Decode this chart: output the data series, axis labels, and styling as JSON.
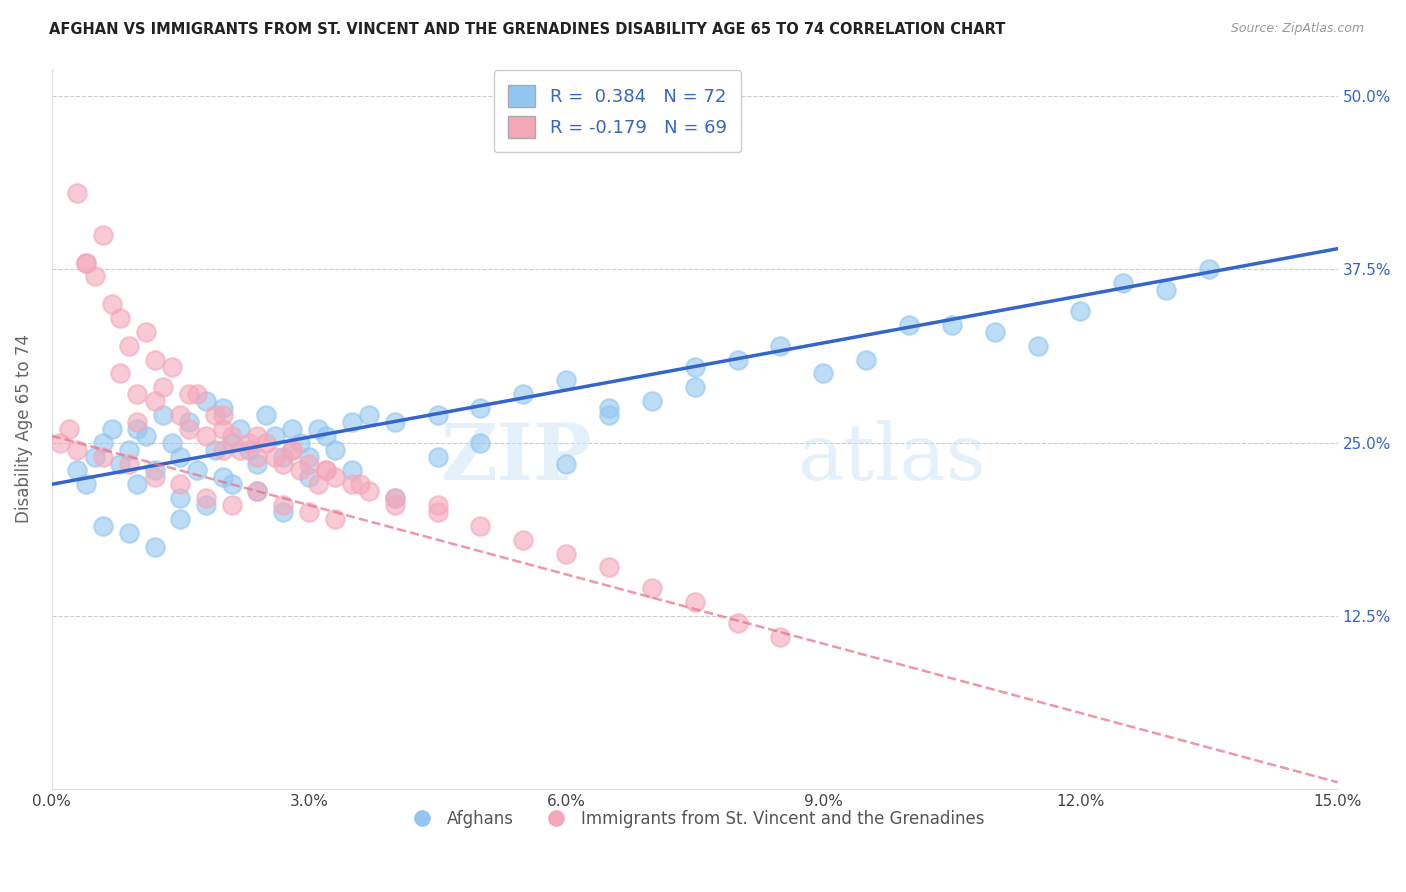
{
  "title": "AFGHAN VS IMMIGRANTS FROM ST. VINCENT AND THE GRENADINES DISABILITY AGE 65 TO 74 CORRELATION CHART",
  "source": "Source: ZipAtlas.com",
  "ylabel": "Disability Age 65 to 74",
  "xmin": 0.0,
  "xmax": 15.0,
  "ymin": 0.0,
  "ymax": 52.0,
  "yticks": [
    12.5,
    25.0,
    37.5,
    50.0
  ],
  "ytick_labels": [
    "12.5%",
    "25.0%",
    "37.5%",
    "50.0%"
  ],
  "xticks": [
    0.0,
    3.0,
    6.0,
    9.0,
    12.0,
    15.0
  ],
  "xtick_labels": [
    "0.0%",
    "3.0%",
    "6.0%",
    "9.0%",
    "12.0%",
    "15.0%"
  ],
  "blue_R": 0.384,
  "blue_N": 72,
  "pink_R": -0.179,
  "pink_N": 69,
  "blue_color": "#92C5F0",
  "pink_color": "#F4A7B9",
  "trend_blue_color": "#3465C8",
  "trend_pink_color": "#E8748A",
  "legend_label_blue": "Afghans",
  "legend_label_pink": "Immigrants from St. Vincent and the Grenadines",
  "watermark_zip": "ZIP",
  "watermark_atlas": "atlas",
  "blue_trend_x0": 0.0,
  "blue_trend_y0": 22.0,
  "blue_trend_x1": 15.0,
  "blue_trend_y1": 39.0,
  "pink_trend_x0": 0.0,
  "pink_trend_y0": 25.5,
  "pink_trend_x1": 15.0,
  "pink_trend_y1": 0.5,
  "blue_scatter_x": [
    0.3,
    0.4,
    0.5,
    0.6,
    0.7,
    0.8,
    0.9,
    1.0,
    1.0,
    1.1,
    1.2,
    1.3,
    1.4,
    1.5,
    1.6,
    1.7,
    1.8,
    1.9,
    2.0,
    2.0,
    2.1,
    2.2,
    2.3,
    2.4,
    2.5,
    2.6,
    2.7,
    2.8,
    2.9,
    3.0,
    3.1,
    3.2,
    3.3,
    3.5,
    3.7,
    4.0,
    4.5,
    5.0,
    5.5,
    6.0,
    6.5,
    7.0,
    7.5,
    8.0,
    9.0,
    10.0,
    11.0,
    12.5,
    1.5,
    1.8,
    2.1,
    2.4,
    2.7,
    3.0,
    3.5,
    4.0,
    4.5,
    5.0,
    6.0,
    6.5,
    7.5,
    8.5,
    9.5,
    10.5,
    11.5,
    12.0,
    13.0,
    13.5,
    0.6,
    0.9,
    1.2,
    1.5
  ],
  "blue_scatter_y": [
    23.0,
    22.0,
    24.0,
    25.0,
    26.0,
    23.5,
    24.5,
    22.0,
    26.0,
    25.5,
    23.0,
    27.0,
    25.0,
    24.0,
    26.5,
    23.0,
    28.0,
    24.5,
    22.5,
    27.5,
    25.0,
    26.0,
    24.5,
    23.5,
    27.0,
    25.5,
    24.0,
    26.0,
    25.0,
    24.0,
    26.0,
    25.5,
    24.5,
    26.5,
    27.0,
    26.5,
    27.0,
    27.5,
    28.5,
    29.5,
    27.0,
    28.0,
    29.0,
    31.0,
    30.0,
    33.5,
    33.0,
    36.5,
    21.0,
    20.5,
    22.0,
    21.5,
    20.0,
    22.5,
    23.0,
    21.0,
    24.0,
    25.0,
    23.5,
    27.5,
    30.5,
    32.0,
    31.0,
    33.5,
    32.0,
    34.5,
    36.0,
    37.5,
    19.0,
    18.5,
    17.5,
    19.5
  ],
  "pink_scatter_x": [
    0.1,
    0.2,
    0.3,
    0.4,
    0.5,
    0.6,
    0.7,
    0.8,
    0.9,
    1.0,
    1.0,
    1.1,
    1.2,
    1.3,
    1.4,
    1.5,
    1.6,
    1.7,
    1.8,
    1.9,
    2.0,
    2.0,
    2.1,
    2.2,
    2.3,
    2.4,
    2.5,
    2.6,
    2.7,
    2.8,
    2.9,
    3.0,
    3.1,
    3.2,
    3.3,
    3.5,
    3.7,
    4.0,
    4.5,
    0.3,
    0.6,
    0.9,
    1.2,
    1.5,
    1.8,
    2.1,
    2.4,
    2.7,
    3.0,
    3.3,
    0.4,
    0.8,
    1.2,
    1.6,
    2.0,
    2.4,
    2.8,
    3.2,
    3.6,
    4.0,
    4.5,
    5.0,
    5.5,
    6.0,
    6.5,
    7.0,
    7.5,
    8.0,
    8.5
  ],
  "pink_scatter_y": [
    25.0,
    26.0,
    43.0,
    38.0,
    37.0,
    40.0,
    35.0,
    30.0,
    32.0,
    28.5,
    26.5,
    33.0,
    28.0,
    29.0,
    30.5,
    27.0,
    26.0,
    28.5,
    25.5,
    27.0,
    26.0,
    24.5,
    25.5,
    24.5,
    25.0,
    24.0,
    25.0,
    24.0,
    23.5,
    24.5,
    23.0,
    23.5,
    22.0,
    23.0,
    22.5,
    22.0,
    21.5,
    21.0,
    20.5,
    24.5,
    24.0,
    23.5,
    22.5,
    22.0,
    21.0,
    20.5,
    21.5,
    20.5,
    20.0,
    19.5,
    38.0,
    34.0,
    31.0,
    28.5,
    27.0,
    25.5,
    24.5,
    23.0,
    22.0,
    20.5,
    20.0,
    19.0,
    18.0,
    17.0,
    16.0,
    14.5,
    13.5,
    12.0,
    11.0
  ]
}
